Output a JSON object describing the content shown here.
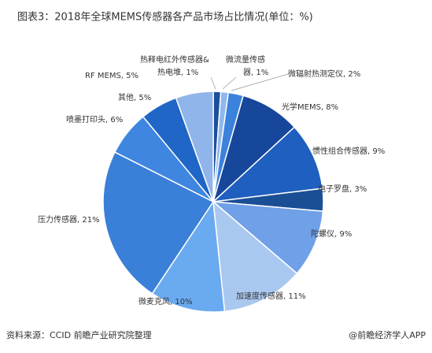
{
  "chart_data": {
    "type": "pie",
    "title": "图表3：2018年全球MEMS传感器各产品市场占比情况(单位：%)",
    "categories": [
      "热释电红外传感器&热电堆",
      "微流量传感器",
      "微辐射热测定仪",
      "光学MEMS",
      "惯性组合传感器",
      "电子罗盘",
      "陀螺仪",
      "加速度传感器",
      "微麦克风",
      "压力传感器",
      "喷墨打印头",
      "其他",
      "RF MEMS"
    ],
    "values": [
      1,
      1,
      2,
      8,
      9,
      3,
      9,
      11,
      10,
      21,
      6,
      5,
      5
    ],
    "value_labels": [
      [
        "热释电红外传感器&",
        "热电堆, 1%"
      ],
      [
        "微流量传感",
        "器, 1%"
      ],
      [
        "微辐射热测定仪, 2%"
      ],
      [
        "光学MEMS, 8%"
      ],
      [
        "惯性组合传感器, 9%"
      ],
      [
        "电子罗盘, 3%"
      ],
      [
        "陀螺仪, 9%"
      ],
      [
        "加速度传感器, 11%"
      ],
      [
        "微麦克风, 10%"
      ],
      [
        "压力传感器, 21%"
      ],
      [
        "喷墨打印头, 6%"
      ],
      [
        "其他, 5%"
      ],
      [
        "RF MEMS, 5%"
      ]
    ],
    "colors": [
      "#1c4f9c",
      "#8fb8ee",
      "#3b82dc",
      "#17479a",
      "#1f5fbf",
      "#1a4f95",
      "#6fa0e8",
      "#a9c8f0",
      "#6aaaf0",
      "#3a7fd8",
      "#3e86e0",
      "#1f66c6",
      "#8fb5ea"
    ],
    "source": "资料来源：CCID 前瞻产业研究院整理",
    "credit": "@前瞻经济学人APP"
  }
}
